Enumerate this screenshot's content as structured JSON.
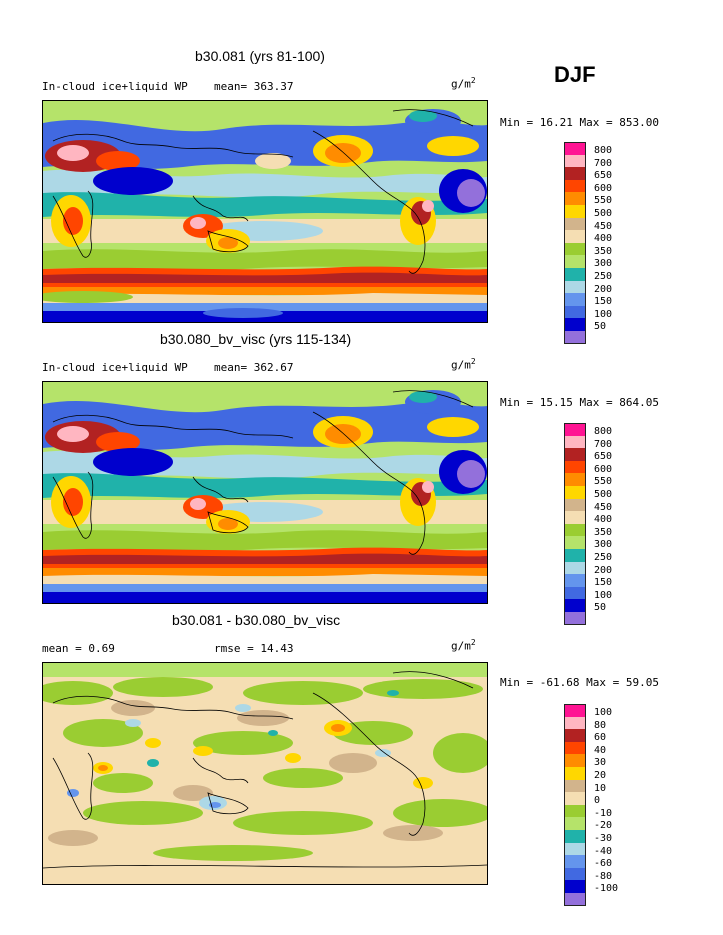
{
  "season": "DJF",
  "units": "g/m",
  "units_exp": "2",
  "panels": [
    {
      "title": "b30.081 (yrs 81-100)",
      "left_label": "In-cloud ice+liquid WP",
      "mean_label": "mean= 363.37",
      "minmax": "Min =  16.21 Max = 853.00",
      "legend": [
        "800",
        "700",
        "650",
        "600",
        "550",
        "500",
        "450",
        "400",
        "350",
        "300",
        "250",
        "200",
        "150",
        "100",
        "50"
      ]
    },
    {
      "title": "b30.080_bv_visc (yrs 115-134)",
      "left_label": "In-cloud ice+liquid WP",
      "mean_label": "mean= 362.67",
      "minmax": "Min =  15.15 Max = 864.05",
      "legend": [
        "800",
        "700",
        "650",
        "600",
        "550",
        "500",
        "450",
        "400",
        "350",
        "300",
        "250",
        "200",
        "150",
        "100",
        "50"
      ]
    },
    {
      "title": "b30.081 - b30.080_bv_visc",
      "left_label": "mean =   0.69",
      "mean_label": "rmse =  14.43",
      "minmax": "Min = -61.68 Max =  59.05",
      "legend": [
        "100",
        "80",
        "60",
        "40",
        "30",
        "20",
        "10",
        "0",
        "-10",
        "-20",
        "-30",
        "-40",
        "-60",
        "-80",
        "-100"
      ]
    }
  ],
  "colors": {
    "scale": [
      "#ff1493",
      "#ffb6c1",
      "#b22222",
      "#ff4500",
      "#ff8c00",
      "#ffd700",
      "#d2b48c",
      "#f5deb3",
      "#9acd32",
      "#b5e36a",
      "#20b2aa",
      "#add8e6",
      "#6495ed",
      "#4169e1",
      "#0000cd",
      "#9370db"
    ]
  }
}
